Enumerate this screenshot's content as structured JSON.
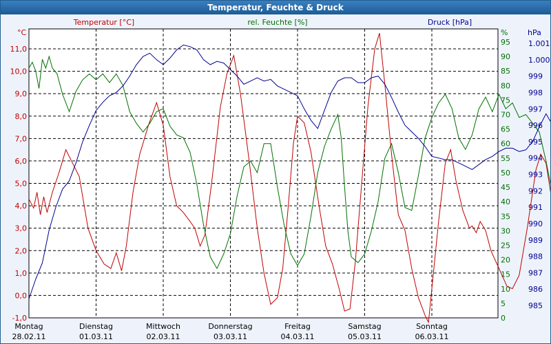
{
  "window": {
    "title": "Temperatur, Feuchte & Druck"
  },
  "chart_data": {
    "type": "line",
    "x_labels": [
      {
        "day": "Montag",
        "date": "28.02.11"
      },
      {
        "day": "Dienstag",
        "date": "01.03.11"
      },
      {
        "day": "Mittwoch",
        "date": "02.03.11"
      },
      {
        "day": "Donnerstag",
        "date": "03.03.11"
      },
      {
        "day": "Freitag",
        "date": "04.03.11"
      },
      {
        "day": "Samstag",
        "date": "05.03.11"
      },
      {
        "day": "Sonntag",
        "date": "06.03.11"
      }
    ],
    "axes": {
      "temperature": {
        "unit": "°C",
        "ylim": [
          -1.0,
          11.0
        ],
        "ticks": [
          "-1,0",
          "0,0",
          "1,0",
          "2,0",
          "3,0",
          "4,0",
          "5,0",
          "6,0",
          "7,0",
          "8,0",
          "9,0",
          "10,0",
          "11,0"
        ],
        "color": "#c00000"
      },
      "humidity": {
        "unit": "%",
        "ylim": [
          0,
          95
        ],
        "ticks": [
          "0",
          "5",
          "10",
          "15",
          "20",
          "25",
          "30",
          "35",
          "40",
          "45",
          "50",
          "55",
          "60",
          "65",
          "70",
          "75",
          "80",
          "85",
          "90",
          "95"
        ],
        "color": "#007000"
      },
      "pressure": {
        "unit": "hPa",
        "ylim": [
          985,
          1001
        ],
        "ticks": [
          "985",
          "986",
          "987",
          "988",
          "989",
          "990",
          "991",
          "992",
          "993",
          "994",
          "995",
          "996",
          "997",
          "998",
          "999",
          "1.000",
          "1.001"
        ],
        "color": "#000090"
      }
    },
    "series": [
      {
        "name": "Temperatur [°C]",
        "axis": "temperature",
        "color": "#c00000",
        "points": [
          [
            0,
            4.3
          ],
          [
            0.07,
            3.9
          ],
          [
            0.12,
            4.6
          ],
          [
            0.17,
            3.6
          ],
          [
            0.22,
            4.4
          ],
          [
            0.27,
            3.7
          ],
          [
            0.35,
            4.6
          ],
          [
            0.45,
            5.5
          ],
          [
            0.55,
            6.5
          ],
          [
            0.65,
            5.9
          ],
          [
            0.75,
            5.3
          ],
          [
            0.88,
            3.0
          ],
          [
            1.0,
            2.0
          ],
          [
            1.12,
            1.4
          ],
          [
            1.22,
            1.2
          ],
          [
            1.3,
            1.9
          ],
          [
            1.38,
            1.1
          ],
          [
            1.45,
            2.2
          ],
          [
            1.55,
            4.6
          ],
          [
            1.65,
            6.3
          ],
          [
            1.78,
            7.6
          ],
          [
            1.9,
            8.6
          ],
          [
            2.0,
            7.6
          ],
          [
            2.1,
            5.3
          ],
          [
            2.2,
            4.0
          ],
          [
            2.3,
            3.7
          ],
          [
            2.4,
            3.3
          ],
          [
            2.47,
            3.0
          ],
          [
            2.55,
            2.2
          ],
          [
            2.62,
            2.7
          ],
          [
            2.72,
            5.0
          ],
          [
            2.85,
            8.4
          ],
          [
            2.95,
            9.9
          ],
          [
            3.05,
            10.7
          ],
          [
            3.15,
            9.0
          ],
          [
            3.28,
            6.0
          ],
          [
            3.4,
            3.0
          ],
          [
            3.5,
            1.0
          ],
          [
            3.6,
            -0.4
          ],
          [
            3.7,
            -0.1
          ],
          [
            3.78,
            1.2
          ],
          [
            3.86,
            3.9
          ],
          [
            3.94,
            6.8
          ],
          [
            4.0,
            8.0
          ],
          [
            4.1,
            7.7
          ],
          [
            4.2,
            6.4
          ],
          [
            4.32,
            4.0
          ],
          [
            4.42,
            2.2
          ],
          [
            4.52,
            1.4
          ],
          [
            4.62,
            0.3
          ],
          [
            4.7,
            -0.7
          ],
          [
            4.78,
            -0.6
          ],
          [
            4.86,
            1.5
          ],
          [
            4.95,
            4.8
          ],
          [
            5.05,
            8.5
          ],
          [
            5.15,
            11.0
          ],
          [
            5.22,
            11.7
          ],
          [
            5.3,
            9.4
          ],
          [
            5.4,
            6.3
          ],
          [
            5.5,
            3.6
          ],
          [
            5.6,
            2.9
          ],
          [
            5.7,
            1.2
          ],
          [
            5.8,
            -0.1
          ],
          [
            5.9,
            -0.9
          ],
          [
            5.95,
            -1.2
          ],
          [
            6.0,
            0.3
          ],
          [
            6.1,
            3.3
          ],
          [
            6.2,
            5.9
          ],
          [
            6.28,
            6.5
          ],
          [
            6.36,
            5.1
          ],
          [
            6.46,
            3.8
          ],
          [
            6.56,
            3.0
          ],
          [
            6.6,
            3.1
          ],
          [
            6.66,
            2.8
          ],
          [
            6.72,
            3.3
          ],
          [
            6.8,
            2.9
          ],
          [
            6.88,
            2.0
          ],
          [
            7.0,
            1.2
          ],
          [
            7.12,
            0.4
          ],
          [
            7.2,
            0.3
          ],
          [
            7.3,
            0.9
          ],
          [
            7.42,
            3.0
          ],
          [
            7.55,
            5.6
          ],
          [
            7.62,
            6.3
          ],
          [
            7.7,
            5.9
          ],
          [
            7.8,
            4.0
          ],
          [
            7.9,
            3.1
          ],
          [
            7.98,
            1.4
          ],
          [
            8.08,
            0.5
          ]
        ]
      },
      {
        "name": "rel. Feuchte [%]",
        "axis": "humidity",
        "color": "#007000",
        "points": [
          [
            0,
            86
          ],
          [
            0.05,
            88
          ],
          [
            0.1,
            85
          ],
          [
            0.15,
            79
          ],
          [
            0.2,
            89
          ],
          [
            0.25,
            86
          ],
          [
            0.3,
            90
          ],
          [
            0.35,
            86
          ],
          [
            0.42,
            84
          ],
          [
            0.5,
            77
          ],
          [
            0.6,
            71
          ],
          [
            0.7,
            78
          ],
          [
            0.8,
            82
          ],
          [
            0.9,
            84
          ],
          [
            1.0,
            82
          ],
          [
            1.1,
            84
          ],
          [
            1.2,
            81
          ],
          [
            1.3,
            84
          ],
          [
            1.4,
            80
          ],
          [
            1.5,
            71
          ],
          [
            1.6,
            67
          ],
          [
            1.7,
            64
          ],
          [
            1.8,
            67
          ],
          [
            1.9,
            71
          ],
          [
            2.0,
            72
          ],
          [
            2.1,
            66
          ],
          [
            2.2,
            63
          ],
          [
            2.3,
            62
          ],
          [
            2.4,
            57
          ],
          [
            2.5,
            46
          ],
          [
            2.6,
            32
          ],
          [
            2.7,
            21
          ],
          [
            2.8,
            17
          ],
          [
            2.9,
            22
          ],
          [
            3.0,
            29
          ],
          [
            3.1,
            42
          ],
          [
            3.2,
            52
          ],
          [
            3.3,
            54
          ],
          [
            3.4,
            50
          ],
          [
            3.5,
            60
          ],
          [
            3.6,
            60
          ],
          [
            3.7,
            45
          ],
          [
            3.8,
            32
          ],
          [
            3.9,
            22
          ],
          [
            4.0,
            18
          ],
          [
            4.1,
            22
          ],
          [
            4.2,
            35
          ],
          [
            4.3,
            50
          ],
          [
            4.4,
            59
          ],
          [
            4.5,
            65
          ],
          [
            4.6,
            70
          ],
          [
            4.65,
            62
          ],
          [
            4.7,
            45
          ],
          [
            4.75,
            30
          ],
          [
            4.8,
            21
          ],
          [
            4.9,
            19
          ],
          [
            5.0,
            22
          ],
          [
            5.1,
            30
          ],
          [
            5.2,
            40
          ],
          [
            5.3,
            55
          ],
          [
            5.4,
            60
          ],
          [
            5.5,
            50
          ],
          [
            5.6,
            38
          ],
          [
            5.7,
            37
          ],
          [
            5.8,
            49
          ],
          [
            5.9,
            62
          ],
          [
            6.0,
            69
          ],
          [
            6.1,
            74
          ],
          [
            6.2,
            77
          ],
          [
            6.3,
            72
          ],
          [
            6.4,
            62
          ],
          [
            6.5,
            58
          ],
          [
            6.6,
            63
          ],
          [
            6.7,
            72
          ],
          [
            6.8,
            76
          ],
          [
            6.9,
            71
          ],
          [
            7.0,
            77
          ],
          [
            7.1,
            72
          ],
          [
            7.2,
            74
          ],
          [
            7.3,
            69
          ],
          [
            7.4,
            70
          ],
          [
            7.5,
            67
          ],
          [
            7.6,
            64
          ],
          [
            7.7,
            54
          ],
          [
            7.8,
            42
          ],
          [
            7.9,
            37
          ],
          [
            8.0,
            46
          ],
          [
            8.1,
            56
          ],
          [
            8.2,
            58
          ],
          [
            8.28,
            62
          ]
        ]
      },
      {
        "name": "Druck [hPa]",
        "axis": "pressure",
        "color": "#000090",
        "points": [
          [
            0,
            985.4
          ],
          [
            0.1,
            986.6
          ],
          [
            0.2,
            987.6
          ],
          [
            0.3,
            989.6
          ],
          [
            0.4,
            991.0
          ],
          [
            0.5,
            992.1
          ],
          [
            0.6,
            992.6
          ],
          [
            0.7,
            993.7
          ],
          [
            0.8,
            995.0
          ],
          [
            0.9,
            996.0
          ],
          [
            1.0,
            996.9
          ],
          [
            1.1,
            997.4
          ],
          [
            1.2,
            997.8
          ],
          [
            1.3,
            998.0
          ],
          [
            1.4,
            998.4
          ],
          [
            1.5,
            999.0
          ],
          [
            1.6,
            999.7
          ],
          [
            1.7,
            1000.2
          ],
          [
            1.8,
            1000.4
          ],
          [
            1.9,
            1000.0
          ],
          [
            2.0,
            999.7
          ],
          [
            2.1,
            1000.1
          ],
          [
            2.2,
            1000.6
          ],
          [
            2.3,
            1000.9
          ],
          [
            2.4,
            1000.8
          ],
          [
            2.5,
            1000.6
          ],
          [
            2.6,
            1000.0
          ],
          [
            2.7,
            999.7
          ],
          [
            2.8,
            999.9
          ],
          [
            2.9,
            999.8
          ],
          [
            3.0,
            999.4
          ],
          [
            3.1,
            999.0
          ],
          [
            3.2,
            998.5
          ],
          [
            3.3,
            998.7
          ],
          [
            3.4,
            998.9
          ],
          [
            3.5,
            998.7
          ],
          [
            3.6,
            998.8
          ],
          [
            3.7,
            998.4
          ],
          [
            3.8,
            998.2
          ],
          [
            3.9,
            998.0
          ],
          [
            4.0,
            997.8
          ],
          [
            4.1,
            997.0
          ],
          [
            4.2,
            996.3
          ],
          [
            4.3,
            995.8
          ],
          [
            4.4,
            996.9
          ],
          [
            4.5,
            998.0
          ],
          [
            4.6,
            998.7
          ],
          [
            4.7,
            998.9
          ],
          [
            4.8,
            998.9
          ],
          [
            4.9,
            998.6
          ],
          [
            5.0,
            998.6
          ],
          [
            5.1,
            998.9
          ],
          [
            5.2,
            999.0
          ],
          [
            5.3,
            998.5
          ],
          [
            5.4,
            997.7
          ],
          [
            5.5,
            996.8
          ],
          [
            5.6,
            996.0
          ],
          [
            5.7,
            995.6
          ],
          [
            5.8,
            995.2
          ],
          [
            5.9,
            994.7
          ],
          [
            6.0,
            994.1
          ],
          [
            6.1,
            994.0
          ],
          [
            6.2,
            993.9
          ],
          [
            6.3,
            993.9
          ],
          [
            6.4,
            993.7
          ],
          [
            6.5,
            993.5
          ],
          [
            6.6,
            993.3
          ],
          [
            6.7,
            993.6
          ],
          [
            6.8,
            993.9
          ],
          [
            6.9,
            994.1
          ],
          [
            7.0,
            994.4
          ],
          [
            7.1,
            994.6
          ],
          [
            7.2,
            994.6
          ],
          [
            7.3,
            994.4
          ],
          [
            7.4,
            994.5
          ],
          [
            7.5,
            995.0
          ],
          [
            7.6,
            995.9
          ],
          [
            7.7,
            996.7
          ],
          [
            7.8,
            996.0
          ],
          [
            7.9,
            995.9
          ],
          [
            8.0,
            996.5
          ],
          [
            8.1,
            997.5
          ],
          [
            8.2,
            998.5
          ],
          [
            8.28,
            999.4
          ]
        ]
      }
    ],
    "grid": true,
    "x_range": [
      0,
      8.28
    ]
  }
}
